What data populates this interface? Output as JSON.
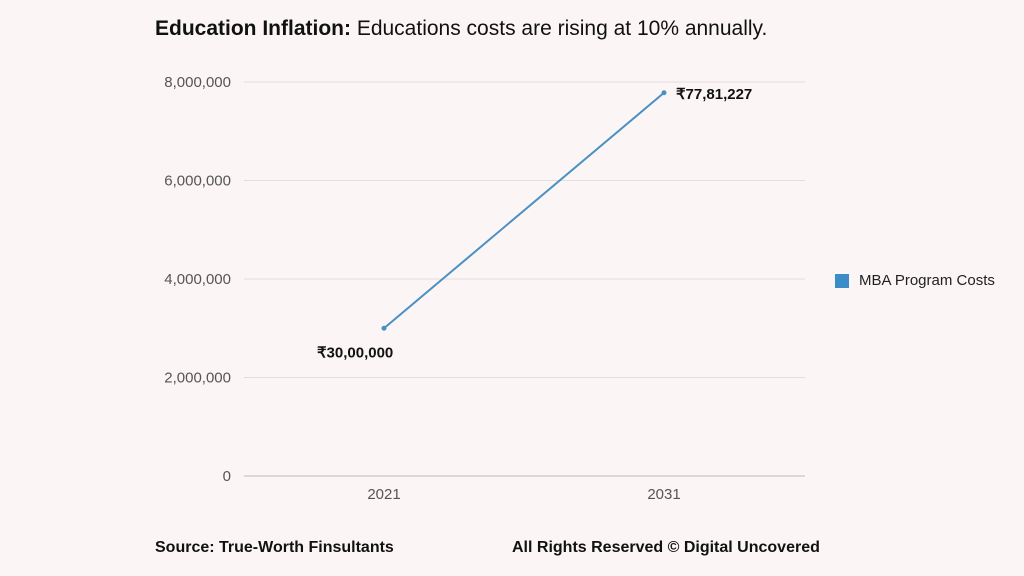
{
  "title": {
    "bold": "Education Inflation:",
    "rest": " Educations costs are rising at 10% annually."
  },
  "chart_data": {
    "type": "line",
    "x": [
      "2021",
      "2031"
    ],
    "series": [
      {
        "name": "MBA Program Costs",
        "values": [
          3000000,
          7781227
        ],
        "data_labels": [
          "₹30,00,000",
          "₹77,81,227"
        ],
        "color": "#4a90c2"
      }
    ],
    "ylim": [
      0,
      8000000
    ],
    "yticks": [
      0,
      2000000,
      4000000,
      6000000,
      8000000
    ],
    "ytick_labels": [
      "0",
      "2,000,000",
      "4,000,000",
      "6,000,000",
      "8,000,000"
    ],
    "grid": true,
    "legend_position": "right"
  },
  "legend": {
    "label": "MBA Program Costs",
    "color": "#3b8cc8"
  },
  "footer": {
    "source": "Source: True-Worth Finsultants",
    "rights": "All Rights Reserved © Digital Uncovered"
  }
}
